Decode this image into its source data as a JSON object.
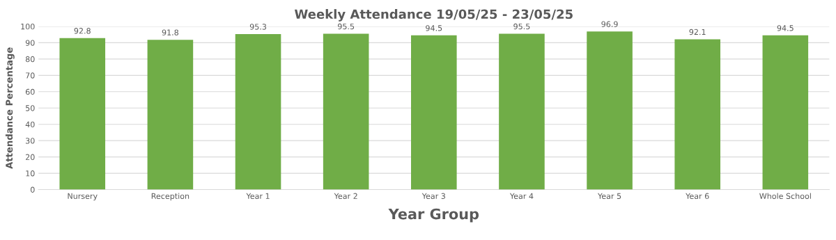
{
  "chart_data": {
    "type": "bar",
    "title": "Weekly Attendance 19/05/25 - 23/05/25",
    "xlabel": "Year Group",
    "ylabel": "Attendance Percentage",
    "categories": [
      "Nursery",
      "Reception",
      "Year 1",
      "Year 2",
      "Year 3",
      "Year 4",
      "Year 5",
      "Year 6",
      "Whole School"
    ],
    "values": [
      92.8,
      91.8,
      95.3,
      95.5,
      94.5,
      95.5,
      96.9,
      92.1,
      94.5
    ],
    "color": "#70ad47",
    "ylim": [
      0,
      100
    ],
    "yticks": [
      0,
      10,
      20,
      30,
      40,
      50,
      60,
      70,
      80,
      90,
      100
    ],
    "grid": "y",
    "data_labels": true
  }
}
